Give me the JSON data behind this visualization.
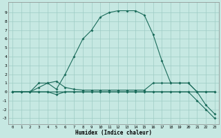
{
  "xlabel": "Humidex (Indice chaleur)",
  "xlim": [
    -0.5,
    23.5
  ],
  "ylim": [
    -3.7,
    10.2
  ],
  "xticks": [
    0,
    1,
    2,
    3,
    4,
    5,
    6,
    7,
    8,
    9,
    10,
    11,
    12,
    13,
    14,
    15,
    16,
    17,
    18,
    19,
    20,
    21,
    22,
    23
  ],
  "yticks": [
    -3,
    -2,
    -1,
    0,
    1,
    2,
    3,
    4,
    5,
    6,
    7,
    8,
    9
  ],
  "bg_color": "#c6e8e2",
  "line_color": "#1a6b5a",
  "grid_color": "#9eccc4",
  "line1_x": [
    0,
    1,
    2,
    3,
    4,
    5,
    6,
    7,
    8,
    9,
    10,
    11,
    12,
    13,
    14,
    15,
    16,
    17,
    18,
    19,
    20,
    21,
    22,
    23
  ],
  "line1_y": [
    0,
    0,
    0,
    1,
    1,
    0.3,
    2,
    4,
    6,
    7,
    8.5,
    9,
    9.2,
    9.2,
    9.2,
    8.7,
    6.5,
    3.5,
    1,
    1,
    1,
    0,
    0,
    0
  ],
  "line2_x": [
    0,
    1,
    2,
    3,
    4,
    5,
    6,
    7,
    8,
    9,
    10,
    11,
    12,
    13,
    14,
    15,
    16,
    17,
    18,
    19,
    20,
    21,
    22,
    23
  ],
  "line2_y": [
    0,
    0,
    0,
    0.5,
    1,
    1.2,
    0.5,
    0.3,
    0.2,
    0.2,
    0.2,
    0.2,
    0.2,
    0.2,
    0.2,
    0.2,
    1,
    1,
    1,
    1,
    1,
    0,
    0,
    0
  ],
  "line3_x": [
    0,
    1,
    2,
    3,
    4,
    5,
    6,
    7,
    8,
    9,
    10,
    11,
    12,
    13,
    14,
    15,
    16,
    17,
    18,
    19,
    20,
    21,
    22,
    23
  ],
  "line3_y": [
    0,
    0,
    0,
    0,
    0,
    -0.3,
    0,
    0,
    0,
    0,
    0,
    0,
    0,
    0,
    0,
    0,
    0,
    0,
    0,
    0,
    0,
    -1,
    -2,
    -3
  ],
  "line4_x": [
    0,
    1,
    2,
    3,
    4,
    5,
    6,
    7,
    8,
    9,
    10,
    11,
    12,
    13,
    14,
    15,
    16,
    17,
    18,
    19,
    20,
    21,
    22,
    23
  ],
  "line4_y": [
    0,
    0,
    0,
    0,
    0,
    0,
    0,
    0,
    0,
    0,
    0,
    0,
    0,
    0,
    0,
    0,
    0,
    0,
    0,
    0,
    0,
    0,
    -1.5,
    -2.5
  ]
}
